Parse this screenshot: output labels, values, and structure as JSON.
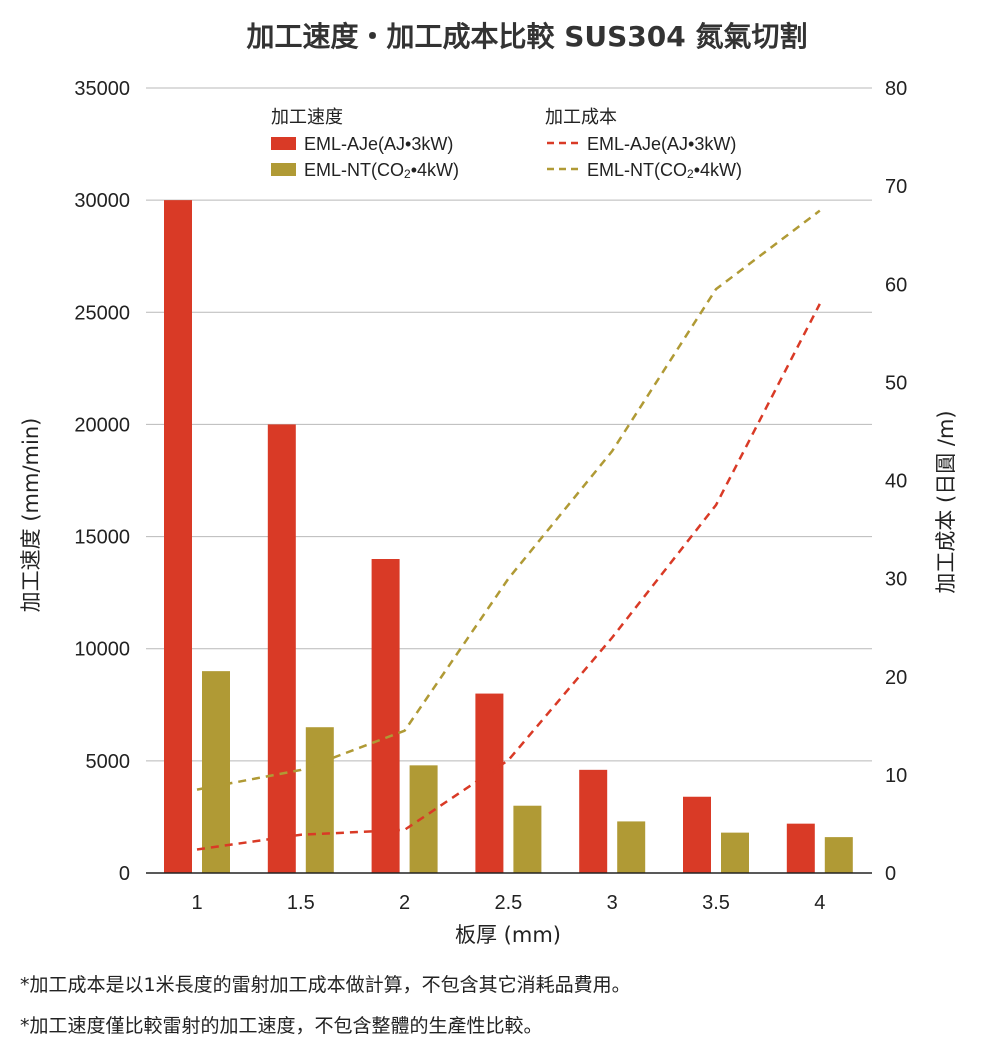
{
  "chart_data": {
    "type": "bar+line",
    "title": "加工速度・加工成本比較 SUS304 氮氣切割",
    "xlabel": "板厚 (mm)",
    "ylabel_left": "加工速度 (mm/min)",
    "ylabel_right": "加工成本 (日圓 /m)",
    "categories": [
      "1",
      "1.5",
      "2",
      "2.5",
      "3",
      "3.5",
      "4"
    ],
    "y_left_ticks": [
      "0",
      "5000",
      "10000",
      "15000",
      "20000",
      "25000",
      "30000",
      "35000"
    ],
    "y_right_ticks": [
      "0",
      "10",
      "20",
      "30",
      "40",
      "50",
      "60",
      "70",
      "80"
    ],
    "ylim_left": [
      0,
      35000
    ],
    "ylim_right": [
      0,
      80
    ],
    "grid": true,
    "legend": {
      "speed_header": "加工速度",
      "cost_header": "加工成本"
    },
    "bar_series": [
      {
        "name": "EML-AJe(AJ•3kW)",
        "color": "#d93a26",
        "values": [
          30000,
          20000,
          14000,
          8000,
          4600,
          3400,
          2200
        ]
      },
      {
        "name": "EML-NT(CO2•4kW)",
        "color": "#b09a35",
        "values": [
          9000,
          6500,
          4800,
          3000,
          2300,
          1800,
          1600
        ]
      }
    ],
    "line_series": [
      {
        "name": "EML-AJe(AJ•3kW)",
        "color": "#d93a26",
        "values": [
          2.4,
          3.9,
          4.4,
          11.5,
          24.0,
          37.5,
          58.0
        ]
      },
      {
        "name": "EML-NT(CO2•4kW)",
        "color": "#b09a35",
        "values": [
          8.5,
          10.5,
          14.5,
          30.0,
          43.0,
          59.5,
          67.5
        ]
      }
    ]
  },
  "footnotes": [
    "*加工成本是以1米長度的雷射加工成本做計算，不包含其它消耗品費用。",
    "*加工速度僅比較雷射的加工速度，不包含整體的生產性比較。"
  ]
}
